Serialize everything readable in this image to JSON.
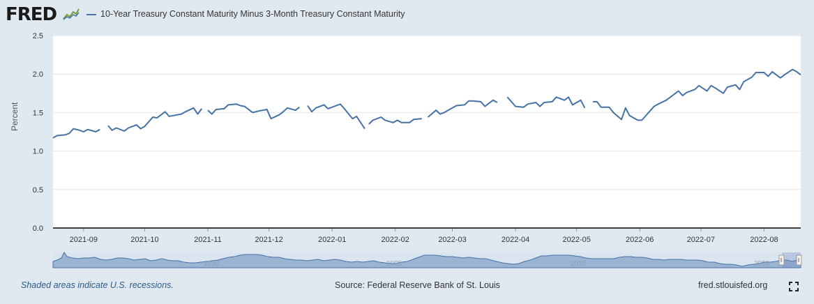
{
  "header": {
    "logo_text": "FRED",
    "series_label": "10-Year Treasury Constant Maturity Minus 3-Month Treasury Constant Maturity"
  },
  "chart_data": {
    "type": "line",
    "title": "10-Year Treasury Constant Maturity Minus 3-Month Treasury Constant Maturity",
    "ylabel": "Percent",
    "xlabel": "",
    "ylim": [
      0,
      2.5
    ],
    "xlim": [
      "2021-08-17",
      "2022-08-19"
    ],
    "y_ticks": [
      "0.0",
      "0.5",
      "1.0",
      "1.5",
      "2.0",
      "2.5"
    ],
    "x_ticks": [
      {
        "date": "2021-09-01",
        "label": "2021-09"
      },
      {
        "date": "2021-10-01",
        "label": "2021-10"
      },
      {
        "date": "2021-11-01",
        "label": "2021-11"
      },
      {
        "date": "2021-12-01",
        "label": "2021-12"
      },
      {
        "date": "2022-01-01",
        "label": "2022-01"
      },
      {
        "date": "2022-02-01",
        "label": "2022-02"
      },
      {
        "date": "2022-03-01",
        "label": "2022-03"
      },
      {
        "date": "2022-04-01",
        "label": "2022-04"
      },
      {
        "date": "2022-05-01",
        "label": "2022-05"
      },
      {
        "date": "2022-06-01",
        "label": "2022-06"
      },
      {
        "date": "2022-07-01",
        "label": "2022-07"
      },
      {
        "date": "2022-08-01",
        "label": "2022-08"
      }
    ],
    "grid": true,
    "color": "#4572a7",
    "segments": [
      {
        "x": [
          "2021-08-17",
          "2021-08-19",
          "2021-08-23",
          "2021-08-25",
          "2021-08-27",
          "2021-08-30",
          "2021-09-01",
          "2021-09-03",
          "2021-09-07",
          "2021-09-09"
        ],
        "y": [
          1.17,
          1.2,
          1.21,
          1.23,
          1.29,
          1.27,
          1.25,
          1.28,
          1.25,
          1.28
        ]
      },
      {
        "x": [
          "2021-09-13",
          "2021-09-15",
          "2021-09-17",
          "2021-09-21",
          "2021-09-23",
          "2021-09-27",
          "2021-09-29",
          "2021-10-01",
          "2021-10-05",
          "2021-10-07",
          "2021-10-11",
          "2021-10-13",
          "2021-10-15",
          "2021-10-19",
          "2021-10-21",
          "2021-10-25",
          "2021-10-27",
          "2021-10-29"
        ],
        "y": [
          1.33,
          1.27,
          1.3,
          1.26,
          1.3,
          1.34,
          1.29,
          1.32,
          1.44,
          1.43,
          1.51,
          1.45,
          1.46,
          1.48,
          1.51,
          1.56,
          1.48,
          1.55
        ]
      },
      {
        "x": [
          "2021-11-01",
          "2021-11-03",
          "2021-11-05",
          "2021-11-09",
          "2021-11-11",
          "2021-11-15",
          "2021-11-17",
          "2021-11-19",
          "2021-11-23",
          "2021-11-26",
          "2021-11-30",
          "2021-12-02",
          "2021-12-06",
          "2021-12-08",
          "2021-12-10",
          "2021-12-14",
          "2021-12-16"
        ],
        "y": [
          1.53,
          1.48,
          1.54,
          1.55,
          1.6,
          1.61,
          1.59,
          1.58,
          1.5,
          1.52,
          1.54,
          1.42,
          1.47,
          1.51,
          1.56,
          1.53,
          1.57
        ]
      },
      {
        "x": [
          "2021-12-20",
          "2021-12-22",
          "2021-12-24",
          "2021-12-28",
          "2021-12-30",
          "2022-01-03",
          "2022-01-05",
          "2022-01-07",
          "2022-01-11",
          "2022-01-13",
          "2022-01-17"
        ],
        "y": [
          1.59,
          1.51,
          1.56,
          1.6,
          1.55,
          1.59,
          1.61,
          1.55,
          1.42,
          1.45,
          1.29
        ]
      },
      {
        "x": [
          "2022-01-19",
          "2022-01-21",
          "2022-01-25",
          "2022-01-27",
          "2022-01-31",
          "2022-02-02",
          "2022-02-04",
          "2022-02-08",
          "2022-02-10",
          "2022-02-14"
        ],
        "y": [
          1.35,
          1.4,
          1.44,
          1.4,
          1.37,
          1.4,
          1.37,
          1.37,
          1.41,
          1.42
        ]
      },
      {
        "x": [
          "2022-02-17",
          "2022-02-21",
          "2022-02-23",
          "2022-02-25",
          "2022-03-01",
          "2022-03-03",
          "2022-03-07",
          "2022-03-09",
          "2022-03-11",
          "2022-03-15",
          "2022-03-17",
          "2022-03-21",
          "2022-03-23"
        ],
        "y": [
          1.44,
          1.53,
          1.48,
          1.5,
          1.56,
          1.59,
          1.6,
          1.65,
          1.65,
          1.64,
          1.58,
          1.66,
          1.63
        ]
      },
      {
        "x": [
          "2022-03-28",
          "2022-03-30",
          "2022-04-01",
          "2022-04-05",
          "2022-04-07",
          "2022-04-11",
          "2022-04-13",
          "2022-04-15",
          "2022-04-19",
          "2022-04-21",
          "2022-04-25",
          "2022-04-27",
          "2022-04-29",
          "2022-05-03",
          "2022-05-05"
        ],
        "y": [
          1.7,
          1.64,
          1.58,
          1.57,
          1.61,
          1.63,
          1.58,
          1.63,
          1.64,
          1.7,
          1.66,
          1.7,
          1.6,
          1.66,
          1.56
        ]
      },
      {
        "x": [
          "2022-05-09",
          "2022-05-11",
          "2022-05-13",
          "2022-05-17",
          "2022-05-19",
          "2022-05-23",
          "2022-05-25",
          "2022-05-27",
          "2022-05-31",
          "2022-06-02",
          "2022-06-06",
          "2022-06-08",
          "2022-06-10",
          "2022-06-14",
          "2022-06-16",
          "2022-06-20",
          "2022-06-22",
          "2022-06-24",
          "2022-06-28",
          "2022-06-30",
          "2022-07-04",
          "2022-07-06",
          "2022-07-08",
          "2022-07-12",
          "2022-07-14",
          "2022-07-18",
          "2022-07-20",
          "2022-07-22",
          "2022-07-26",
          "2022-07-28",
          "2022-08-01",
          "2022-08-03",
          "2022-08-05",
          "2022-08-09",
          "2022-08-11",
          "2022-08-15",
          "2022-08-17",
          "2022-08-19"
        ],
        "y": [
          1.64,
          1.64,
          1.57,
          1.57,
          1.5,
          1.41,
          1.56,
          1.46,
          1.4,
          1.4,
          1.52,
          1.58,
          1.61,
          1.66,
          1.7,
          1.78,
          1.72,
          1.76,
          1.8,
          1.85,
          1.78,
          1.85,
          1.82,
          1.75,
          1.83,
          1.86,
          1.8,
          1.9,
          1.96,
          2.02,
          2.02,
          1.97,
          2.03,
          1.95,
          1.99,
          2.06,
          2.03,
          1.99
        ]
      }
    ]
  },
  "navigator": {
    "labels": [
      "1990",
      "2000",
      "2010",
      "2020"
    ]
  },
  "footer": {
    "recession_note": "Shaded areas indicate U.S. recessions.",
    "source": "Source: Federal Reserve Bank of St. Louis",
    "site": "fred.stlouisfed.org"
  },
  "icons": {
    "fullscreen": "fullscreen-icon",
    "logo_chart": "fred-logo-chart-icon"
  }
}
